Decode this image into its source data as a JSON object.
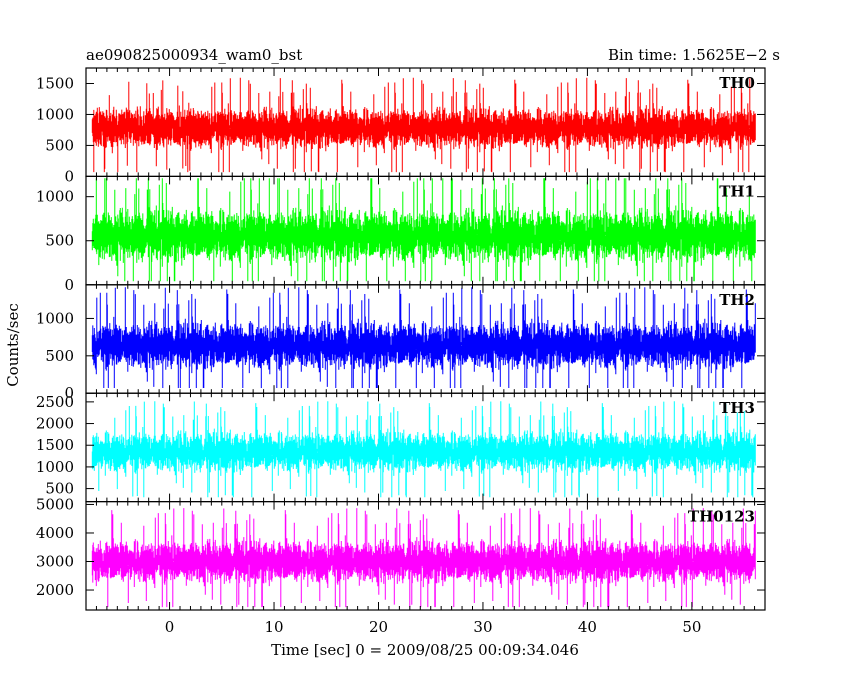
{
  "chart_data": {
    "type": "line",
    "title": "ae090825000934_wam0_bst",
    "bin_time_label": "Bin time: 1.5625E−2 s",
    "xlabel": "Time [sec] 0 = 2009/08/25 00:09:34.046",
    "ylabel": "Counts/sec",
    "xlim": [
      -8,
      57
    ],
    "x_ticks": [
      0,
      10,
      20,
      30,
      40,
      50
    ],
    "x_sample_range": [
      -7.4,
      56.1
    ],
    "panels": [
      {
        "name": "TH0",
        "color": "#ff0000",
        "ylim": [
          0,
          1750
        ],
        "y_ticks": [
          0,
          500,
          1000,
          1500
        ],
        "mean": 780,
        "spread": 230,
        "min": 70,
        "max": 1720
      },
      {
        "name": "TH1",
        "color": "#00ff00",
        "ylim": [
          0,
          1230
        ],
        "y_ticks": [
          0,
          500,
          1000
        ],
        "mean": 560,
        "spread": 210,
        "min": 40,
        "max": 1210
      },
      {
        "name": "TH2",
        "color": "#0000ff",
        "ylim": [
          0,
          1450
        ],
        "y_ticks": [
          0,
          500,
          1000
        ],
        "mean": 640,
        "spread": 220,
        "min": 70,
        "max": 1440
      },
      {
        "name": "TH3",
        "color": "#00ffff",
        "ylim": [
          200,
          2700
        ],
        "y_ticks": [
          500,
          1000,
          1500,
          2000,
          2500
        ],
        "mean": 1350,
        "spread": 330,
        "min": 300,
        "max": 2650
      },
      {
        "name": "TH0123",
        "color": "#ff00ff",
        "ylim": [
          1300,
          5100
        ],
        "y_ticks": [
          2000,
          3000,
          4000,
          5000
        ],
        "mean": 3000,
        "spread": 530,
        "min": 1400,
        "max": 5000
      }
    ]
  }
}
